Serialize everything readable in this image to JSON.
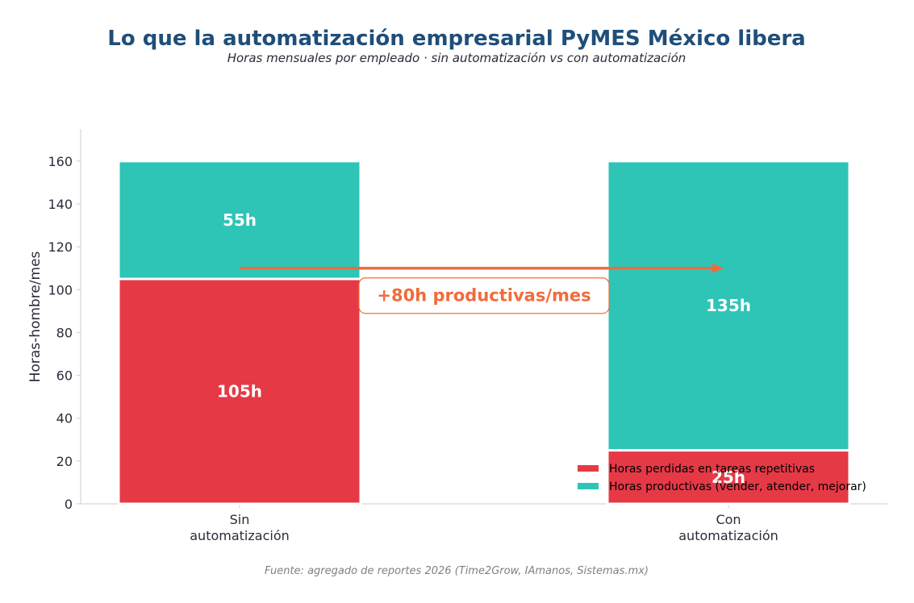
{
  "chart_data": {
    "type": "bar",
    "stacked": true,
    "title": "Lo que la automatización empresarial PyMES México libera",
    "subtitle": "Horas mensuales por empleado · sin automatización vs con automatización",
    "xlabel": "",
    "ylabel": "Horas-hombre/mes",
    "categories": [
      [
        "Sin",
        "automatización"
      ],
      [
        "Con",
        "automatización"
      ]
    ],
    "yticks": [
      "0",
      "20",
      "40",
      "60",
      "80",
      "100",
      "120",
      "140",
      "160"
    ],
    "ylim": [
      0,
      175
    ],
    "grid": false,
    "legend_position": "bottom-right",
    "series": [
      {
        "name": "Horas perdidas en tareas repetitivas",
        "color": "#e63946",
        "values": [
          105,
          25
        ],
        "labels": [
          "105h",
          "25h"
        ]
      },
      {
        "name": "Horas productivas (vender, atender, mejorar)",
        "color": "#2ec4b6",
        "values": [
          55,
          135
        ],
        "labels": [
          "55h",
          "135h"
        ]
      }
    ],
    "annotation": {
      "text": "+80h productivas/mes",
      "arrow_y": 110,
      "color": "#f26b3a"
    },
    "source": "Fuente: agregado de reportes 2026 (Time2Grow, IAmanos, Sistemas.mx)"
  }
}
